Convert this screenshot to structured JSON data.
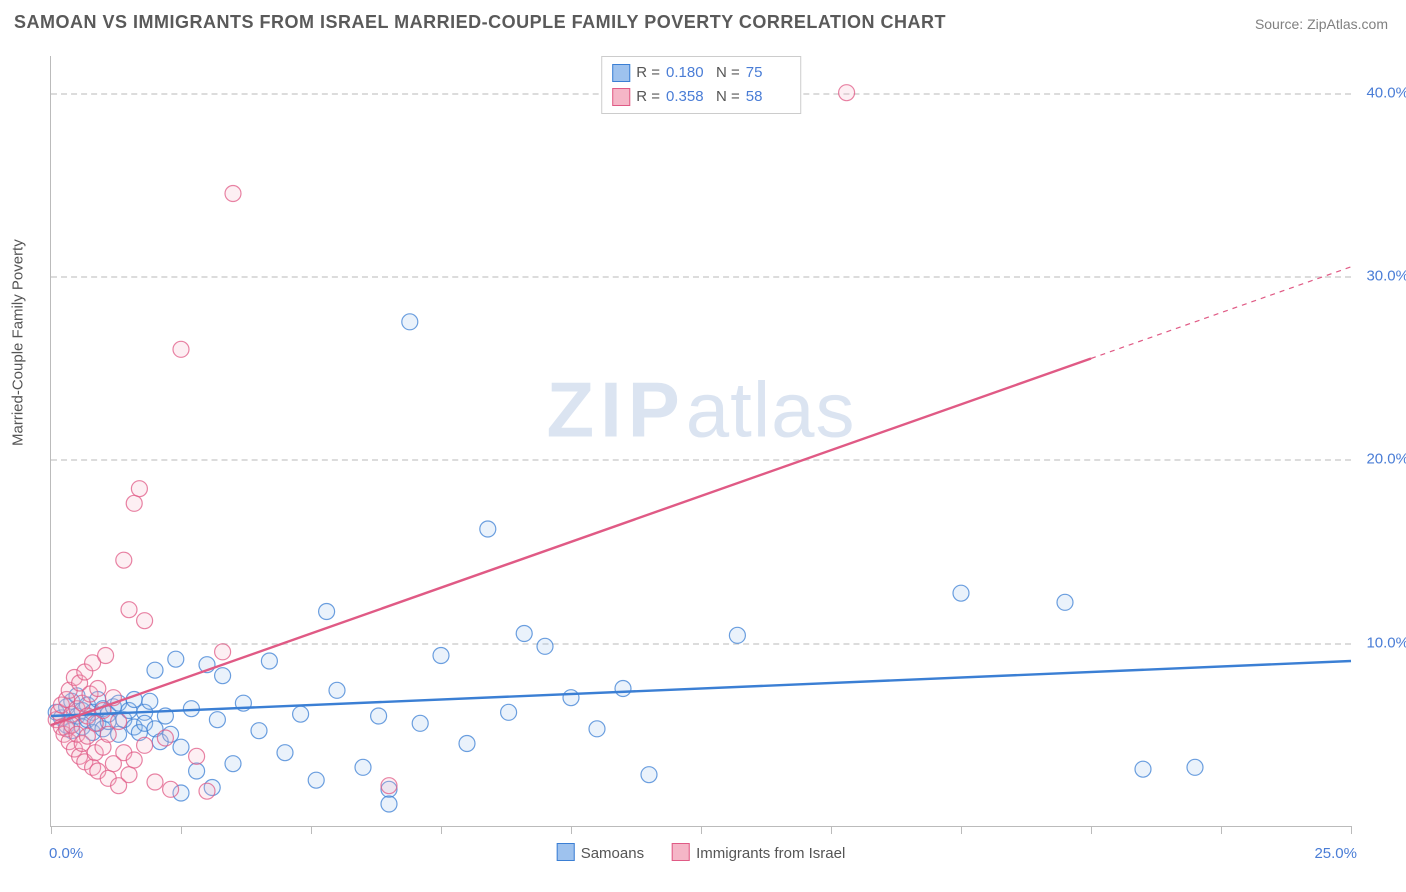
{
  "title": "SAMOAN VS IMMIGRANTS FROM ISRAEL MARRIED-COUPLE FAMILY POVERTY CORRELATION CHART",
  "source_prefix": "Source: ",
  "source_name": "ZipAtlas.com",
  "watermark_a": "ZIP",
  "watermark_b": "atlas",
  "chart": {
    "type": "scatter",
    "ylabel": "Married-Couple Family Poverty",
    "xlim": [
      0,
      25
    ],
    "ylim": [
      0,
      42
    ],
    "x_tick_positions": [
      0,
      2.5,
      5,
      7.5,
      10,
      12.5,
      15,
      17.5,
      20,
      22.5,
      25
    ],
    "x_tick_labels": {
      "0": "0.0%",
      "25": "25.0%"
    },
    "y_gridlines": [
      10,
      20,
      30,
      40
    ],
    "y_tick_labels": [
      "10.0%",
      "20.0%",
      "30.0%",
      "40.0%"
    ],
    "background_color": "#ffffff",
    "grid_color": "#dcdcdc",
    "axis_color": "#bbbbbb",
    "tick_label_color": "#4a7dd6",
    "tick_label_fontsize": 15,
    "ylabel_fontsize": 15,
    "marker_radius": 8,
    "series": [
      {
        "key": "samoans",
        "name": "Samoans",
        "color_fill": "#9ec2ee",
        "color_stroke": "#3b7fd4",
        "r": "0.180",
        "n": "75",
        "trend": {
          "x1": 0,
          "y1": 6.0,
          "x2": 25,
          "y2": 9.0,
          "solid_until_x": 25
        },
        "points": [
          [
            0.1,
            6.2
          ],
          [
            0.2,
            5.9
          ],
          [
            0.3,
            6.5
          ],
          [
            0.3,
            5.5
          ],
          [
            0.4,
            6.8
          ],
          [
            0.4,
            5.2
          ],
          [
            0.5,
            6.0
          ],
          [
            0.5,
            7.1
          ],
          [
            0.6,
            5.4
          ],
          [
            0.6,
            6.3
          ],
          [
            0.7,
            5.8
          ],
          [
            0.7,
            6.6
          ],
          [
            0.8,
            5.1
          ],
          [
            0.8,
            6.2
          ],
          [
            0.9,
            6.9
          ],
          [
            0.9,
            5.6
          ],
          [
            1.0,
            6.4
          ],
          [
            1.0,
            5.3
          ],
          [
            1.1,
            6.1
          ],
          [
            1.1,
            5.7
          ],
          [
            1.2,
            6.5
          ],
          [
            1.3,
            5.0
          ],
          [
            1.3,
            6.7
          ],
          [
            1.4,
            5.8
          ],
          [
            1.5,
            6.3
          ],
          [
            1.6,
            5.4
          ],
          [
            1.6,
            6.9
          ],
          [
            1.7,
            5.1
          ],
          [
            1.8,
            6.2
          ],
          [
            1.8,
            5.6
          ],
          [
            1.9,
            6.8
          ],
          [
            2.0,
            5.3
          ],
          [
            2.0,
            8.5
          ],
          [
            2.1,
            4.6
          ],
          [
            2.2,
            6.0
          ],
          [
            2.3,
            5.0
          ],
          [
            2.4,
            9.1
          ],
          [
            2.5,
            4.3
          ],
          [
            2.7,
            6.4
          ],
          [
            2.8,
            3.0
          ],
          [
            3.0,
            8.8
          ],
          [
            3.1,
            2.1
          ],
          [
            3.2,
            5.8
          ],
          [
            3.3,
            8.2
          ],
          [
            3.5,
            3.4
          ],
          [
            3.7,
            6.7
          ],
          [
            4.0,
            5.2
          ],
          [
            4.2,
            9.0
          ],
          [
            4.5,
            4.0
          ],
          [
            4.8,
            6.1
          ],
          [
            5.1,
            2.5
          ],
          [
            5.3,
            11.7
          ],
          [
            5.5,
            7.4
          ],
          [
            6.0,
            3.2
          ],
          [
            6.3,
            6.0
          ],
          [
            6.5,
            2.0
          ],
          [
            6.9,
            27.5
          ],
          [
            7.1,
            5.6
          ],
          [
            7.5,
            9.3
          ],
          [
            8.0,
            4.5
          ],
          [
            8.4,
            16.2
          ],
          [
            8.8,
            6.2
          ],
          [
            9.1,
            10.5
          ],
          [
            9.5,
            9.8
          ],
          [
            10.0,
            7.0
          ],
          [
            10.5,
            5.3
          ],
          [
            11.0,
            7.5
          ],
          [
            11.5,
            2.8
          ],
          [
            13.2,
            10.4
          ],
          [
            17.5,
            12.7
          ],
          [
            19.5,
            12.2
          ],
          [
            21.0,
            3.1
          ],
          [
            22.0,
            3.2
          ],
          [
            2.5,
            1.8
          ],
          [
            6.5,
            1.2
          ]
        ]
      },
      {
        "key": "israel",
        "name": "Immigrants from Israel",
        "color_fill": "#f5b6c7",
        "color_stroke": "#e05a85",
        "r": "0.358",
        "n": "58",
        "trend": {
          "x1": 0,
          "y1": 5.5,
          "x2": 25,
          "y2": 30.5,
          "solid_until_x": 20
        },
        "points": [
          [
            0.1,
            5.8
          ],
          [
            0.15,
            6.2
          ],
          [
            0.2,
            5.4
          ],
          [
            0.2,
            6.6
          ],
          [
            0.25,
            5.0
          ],
          [
            0.3,
            6.9
          ],
          [
            0.3,
            5.3
          ],
          [
            0.35,
            7.4
          ],
          [
            0.35,
            4.6
          ],
          [
            0.4,
            6.1
          ],
          [
            0.4,
            5.5
          ],
          [
            0.45,
            8.1
          ],
          [
            0.45,
            4.2
          ],
          [
            0.5,
            6.4
          ],
          [
            0.5,
            5.0
          ],
          [
            0.55,
            7.8
          ],
          [
            0.55,
            3.8
          ],
          [
            0.6,
            6.7
          ],
          [
            0.6,
            4.5
          ],
          [
            0.65,
            8.4
          ],
          [
            0.65,
            3.5
          ],
          [
            0.7,
            6.0
          ],
          [
            0.7,
            4.9
          ],
          [
            0.75,
            7.2
          ],
          [
            0.8,
            3.2
          ],
          [
            0.8,
            8.9
          ],
          [
            0.85,
            5.6
          ],
          [
            0.85,
            4.0
          ],
          [
            0.9,
            7.5
          ],
          [
            0.9,
            3.0
          ],
          [
            1.0,
            6.3
          ],
          [
            1.0,
            4.3
          ],
          [
            1.05,
            9.3
          ],
          [
            1.1,
            5.0
          ],
          [
            1.1,
            2.6
          ],
          [
            1.2,
            7.0
          ],
          [
            1.2,
            3.4
          ],
          [
            1.3,
            5.7
          ],
          [
            1.3,
            2.2
          ],
          [
            1.4,
            14.5
          ],
          [
            1.4,
            4.0
          ],
          [
            1.5,
            11.8
          ],
          [
            1.5,
            2.8
          ],
          [
            1.6,
            17.6
          ],
          [
            1.6,
            3.6
          ],
          [
            1.7,
            18.4
          ],
          [
            1.8,
            4.4
          ],
          [
            1.8,
            11.2
          ],
          [
            2.0,
            2.4
          ],
          [
            2.2,
            4.8
          ],
          [
            2.3,
            2.0
          ],
          [
            2.5,
            26.0
          ],
          [
            2.8,
            3.8
          ],
          [
            3.0,
            1.9
          ],
          [
            3.3,
            9.5
          ],
          [
            3.5,
            34.5
          ],
          [
            6.5,
            2.2
          ],
          [
            15.3,
            40.0
          ]
        ]
      }
    ],
    "legend_top_labels": {
      "r": "R =",
      "n": "N ="
    }
  },
  "legend_bottom": [
    {
      "text": "Samoans",
      "fill": "#9ec2ee",
      "stroke": "#3b7fd4"
    },
    {
      "text": "Immigrants from Israel",
      "fill": "#f5b6c7",
      "stroke": "#e05a85"
    }
  ],
  "title_fontsize": 18,
  "title_color": "#5a5a5a",
  "source_fontsize": 14,
  "source_color": "#808080"
}
